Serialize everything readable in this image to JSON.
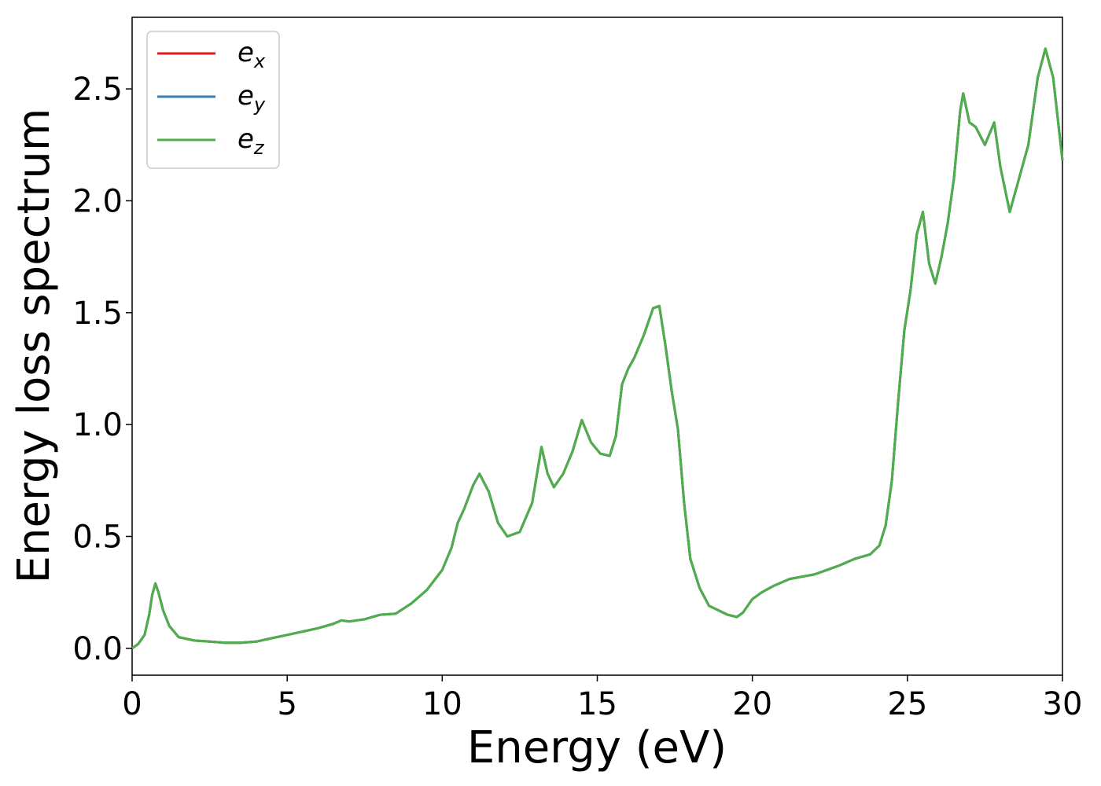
{
  "chart_data": {
    "type": "line",
    "xlabel": "Energy (eV)",
    "ylabel": "Energy loss spectrum",
    "xlim": [
      0,
      30
    ],
    "ylim": [
      -0.12,
      2.82
    ],
    "xticks": [
      0,
      5,
      10,
      15,
      20,
      25,
      30
    ],
    "yticks": [
      0.0,
      0.5,
      1.0,
      1.5,
      2.0,
      2.5
    ],
    "xtick_labels": [
      "0",
      "5",
      "10",
      "15",
      "20",
      "25",
      "30"
    ],
    "ytick_labels": [
      "0.0",
      "0.5",
      "1.0",
      "1.5",
      "2.0",
      "2.5"
    ],
    "grid": false,
    "legend_position": "top-left",
    "series": [
      {
        "name": "e_x",
        "label_base": "e",
        "label_sub": "x",
        "color": "#e41a1c"
      },
      {
        "name": "e_y",
        "label_base": "e",
        "label_sub": "y",
        "color": "#377eb8"
      },
      {
        "name": "e_z",
        "label_base": "e",
        "label_sub": "z",
        "color": "#4daf4a"
      }
    ],
    "x": [
      0,
      0.2,
      0.4,
      0.55,
      0.65,
      0.75,
      0.85,
      1.0,
      1.2,
      1.5,
      2.0,
      2.5,
      3.0,
      3.5,
      4.0,
      4.5,
      5.0,
      5.5,
      6.0,
      6.5,
      6.75,
      7.0,
      7.5,
      8.0,
      8.5,
      9.0,
      9.5,
      10.0,
      10.3,
      10.5,
      10.7,
      11.0,
      11.2,
      11.5,
      11.8,
      12.1,
      12.5,
      12.9,
      13.2,
      13.4,
      13.6,
      13.9,
      14.2,
      14.5,
      14.8,
      15.1,
      15.4,
      15.6,
      15.8,
      16.0,
      16.2,
      16.5,
      16.8,
      17.0,
      17.2,
      17.4,
      17.6,
      17.8,
      18.0,
      18.3,
      18.6,
      18.9,
      19.2,
      19.5,
      19.7,
      20.0,
      20.3,
      20.7,
      21.2,
      21.6,
      22.0,
      22.4,
      22.8,
      23.3,
      23.8,
      24.1,
      24.3,
      24.5,
      24.7,
      24.9,
      25.1,
      25.3,
      25.5,
      25.7,
      25.9,
      26.1,
      26.3,
      26.5,
      26.7,
      26.8,
      27.0,
      27.2,
      27.5,
      27.8,
      28.0,
      28.3,
      28.6,
      28.9,
      29.2,
      29.45,
      29.7,
      30.0
    ],
    "values": [
      0.0,
      0.02,
      0.06,
      0.15,
      0.24,
      0.29,
      0.25,
      0.17,
      0.1,
      0.05,
      0.035,
      0.03,
      0.025,
      0.025,
      0.03,
      0.045,
      0.06,
      0.075,
      0.09,
      0.11,
      0.125,
      0.12,
      0.13,
      0.15,
      0.155,
      0.2,
      0.26,
      0.35,
      0.45,
      0.56,
      0.62,
      0.73,
      0.78,
      0.7,
      0.56,
      0.5,
      0.52,
      0.65,
      0.9,
      0.78,
      0.72,
      0.78,
      0.88,
      1.02,
      0.92,
      0.87,
      0.86,
      0.95,
      1.18,
      1.25,
      1.3,
      1.4,
      1.52,
      1.53,
      1.35,
      1.15,
      0.98,
      0.65,
      0.4,
      0.27,
      0.19,
      0.17,
      0.15,
      0.14,
      0.16,
      0.22,
      0.25,
      0.28,
      0.31,
      0.32,
      0.33,
      0.35,
      0.37,
      0.4,
      0.42,
      0.46,
      0.55,
      0.75,
      1.1,
      1.42,
      1.6,
      1.85,
      1.95,
      1.72,
      1.63,
      1.75,
      1.9,
      2.1,
      2.4,
      2.48,
      2.35,
      2.33,
      2.25,
      2.35,
      2.15,
      1.95,
      2.1,
      2.25,
      2.55,
      2.68,
      2.55,
      2.18
    ]
  }
}
